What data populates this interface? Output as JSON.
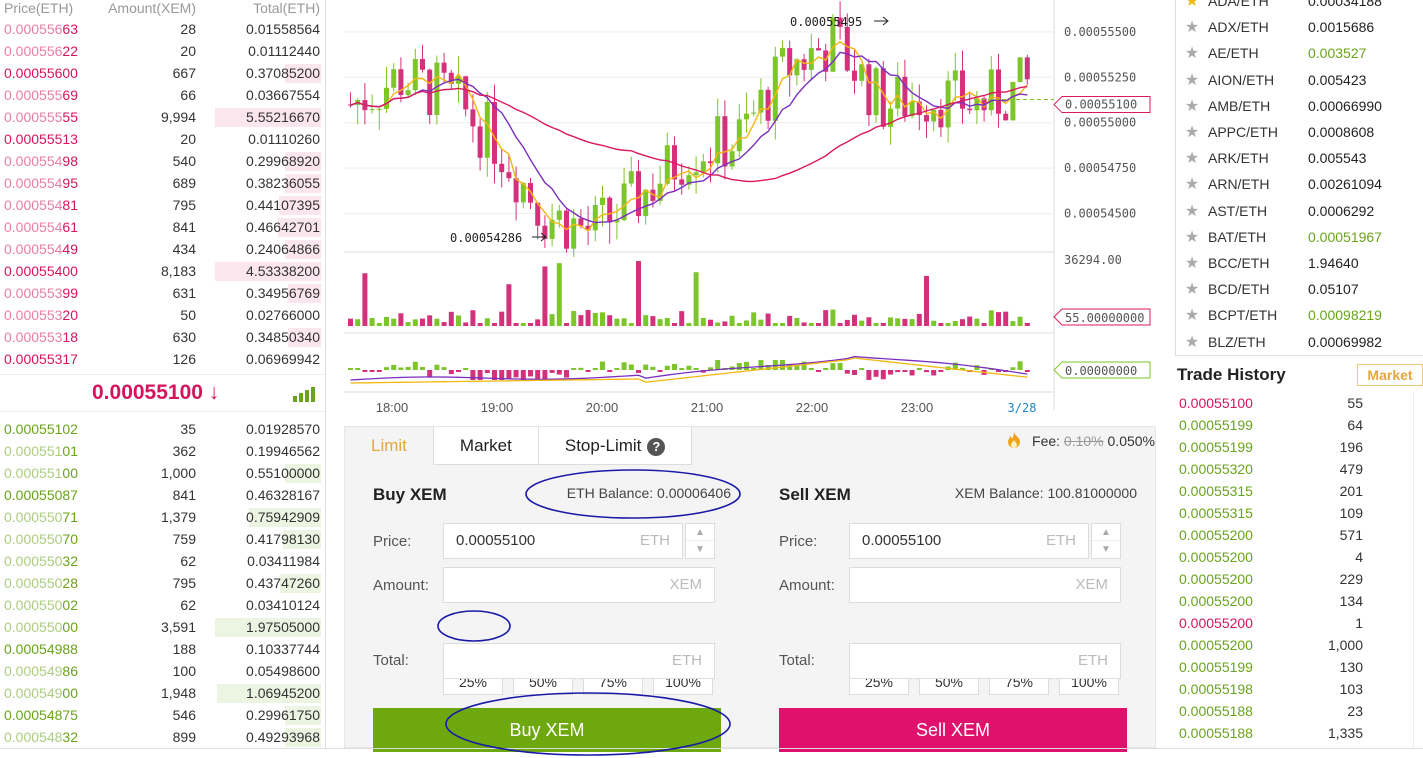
{
  "orderbook": {
    "headers": {
      "price": "Price(ETH)",
      "amount": "Amount(XEM)",
      "total": "Total(ETH)"
    },
    "asks": [
      {
        "hi": "0.000556",
        "lo": "63",
        "amount": "28",
        "total": "0.01558564",
        "depth": 0
      },
      {
        "hi": "0.000556",
        "lo": "22",
        "amount": "20",
        "total": "0.01112440",
        "depth": 0
      },
      {
        "hi": "0.00055600",
        "lo": "",
        "amount": "667",
        "total": "0.37085200",
        "depth": 0.34
      },
      {
        "hi": "0.000555",
        "lo": "69",
        "amount": "66",
        "total": "0.03667554",
        "depth": 0
      },
      {
        "hi": "0.000555",
        "lo": "55",
        "amount": "9,994",
        "total": "5.55216670",
        "depth": 1
      },
      {
        "hi": "0.00055513",
        "lo": "",
        "amount": "20",
        "total": "0.01110260",
        "depth": 0
      },
      {
        "hi": "0.000554",
        "lo": "98",
        "amount": "540",
        "total": "0.29968920",
        "depth": 0.34
      },
      {
        "hi": "0.000554",
        "lo": "95",
        "amount": "689",
        "total": "0.38236055",
        "depth": 0.34
      },
      {
        "hi": "0.000554",
        "lo": "81",
        "amount": "795",
        "total": "0.44107395",
        "depth": 0.4
      },
      {
        "hi": "0.000554",
        "lo": "61",
        "amount": "841",
        "total": "0.46642701",
        "depth": 0.41
      },
      {
        "hi": "0.000554",
        "lo": "49",
        "amount": "434",
        "total": "0.24064866",
        "depth": 0.34
      },
      {
        "hi": "0.00055400",
        "lo": "",
        "amount": "8,183",
        "total": "4.53338200",
        "depth": 1
      },
      {
        "hi": "0.000553",
        "lo": "99",
        "amount": "631",
        "total": "0.34956769",
        "depth": 0.31
      },
      {
        "hi": "0.000553",
        "lo": "20",
        "amount": "50",
        "total": "0.02766000",
        "depth": 0
      },
      {
        "hi": "0.000553",
        "lo": "18",
        "amount": "630",
        "total": "0.34850340",
        "depth": 0.31
      },
      {
        "hi": "0.00055317",
        "lo": "",
        "amount": "126",
        "total": "0.06969942",
        "depth": 0
      }
    ],
    "last_price": "0.00055100 ↓",
    "bids": [
      {
        "hi": "0.00055102",
        "lo": "",
        "amount": "35",
        "total": "0.01928570",
        "depth": 0
      },
      {
        "hi": "0.000551",
        "lo": "01",
        "amount": "362",
        "total": "0.19946562",
        "depth": 0
      },
      {
        "hi": "0.000551",
        "lo": "00",
        "amount": "1,000",
        "total": "0.55100000",
        "depth": 0.34
      },
      {
        "hi": "0.00055087",
        "lo": "",
        "amount": "841",
        "total": "0.46328167",
        "depth": 0
      },
      {
        "hi": "0.000550",
        "lo": "71",
        "amount": "1,379",
        "total": "0.75942909",
        "depth": 0.68
      },
      {
        "hi": "0.000550",
        "lo": "70",
        "amount": "759",
        "total": "0.41798130",
        "depth": 0.36
      },
      {
        "hi": "0.000550",
        "lo": "32",
        "amount": "62",
        "total": "0.03411984",
        "depth": 0
      },
      {
        "hi": "0.000550",
        "lo": "28",
        "amount": "795",
        "total": "0.43747260",
        "depth": 0.39
      },
      {
        "hi": "0.000550",
        "lo": "02",
        "amount": "62",
        "total": "0.03410124",
        "depth": 0
      },
      {
        "hi": "0.000550",
        "lo": "00",
        "amount": "3,591",
        "total": "1.97505000",
        "depth": 1
      },
      {
        "hi": "0.00054988",
        "lo": "",
        "amount": "188",
        "total": "0.10337744",
        "depth": 0
      },
      {
        "hi": "0.000549",
        "lo": "86",
        "amount": "100",
        "total": "0.05498600",
        "depth": 0
      },
      {
        "hi": "0.000549",
        "lo": "00",
        "amount": "1,948",
        "total": "1.06945200",
        "depth": 0.98
      },
      {
        "hi": "0.00054875",
        "lo": "",
        "amount": "546",
        "total": "0.29961750",
        "depth": 0.34
      },
      {
        "hi": "0.000548",
        "lo": "32",
        "amount": "899",
        "total": "0.49293968",
        "depth": 0.34
      }
    ]
  },
  "chart": {
    "x_ticks": [
      "18:00",
      "19:00",
      "20:00",
      "21:00",
      "22:00",
      "23:00"
    ],
    "date_tick": "3/28",
    "y_ticks": [
      "0.00055500",
      "0.00055250",
      "0.00055000",
      "0.00054750",
      "0.00054500"
    ],
    "high_label": "0.00055495",
    "low_label": "0.00054286",
    "current_price_tag": "0.00055100",
    "volume_max": "36294.00",
    "volume_tag": "55.00000000",
    "macd_tag": "0.00000000",
    "colors": {
      "up": "#7dc52a",
      "down": "#d4317c",
      "ma_short": "#f3b712",
      "ma_long": "#7b2fc1",
      "ma_mid": "#d81b60"
    }
  },
  "trade_form": {
    "tabs": [
      "Limit",
      "Market",
      "Stop-Limit"
    ],
    "help_icon": "?",
    "fee_label": "Fee:",
    "fee_old": "0.10%",
    "fee_new": "0.050%",
    "buy": {
      "title": "Buy XEM",
      "balance": "ETH Balance: 0.00006406",
      "price_label": "Price:",
      "price_value": "0.00055100",
      "price_unit": "ETH",
      "amount_label": "Amount:",
      "amount_unit": "XEM",
      "total_label": "Total:",
      "total_unit": "ETH",
      "percents": [
        "25%",
        "50%",
        "75%",
        "100%"
      ],
      "button": "Buy XEM"
    },
    "sell": {
      "title": "Sell XEM",
      "balance": "XEM Balance: 100.81000000",
      "price_label": "Price:",
      "price_value": "0.00055100",
      "price_unit": "ETH",
      "amount_label": "Amount:",
      "amount_unit": "XEM",
      "total_label": "Total:",
      "total_unit": "ETH",
      "percents": [
        "25%",
        "50%",
        "75%",
        "100%"
      ],
      "button": "Sell XEM"
    }
  },
  "markets": [
    {
      "pair": "ADA/ETH",
      "price": "0.00034188",
      "up": false,
      "fav": true
    },
    {
      "pair": "ADX/ETH",
      "price": "0.0015686",
      "up": false,
      "fav": false
    },
    {
      "pair": "AE/ETH",
      "price": "0.003527",
      "up": true,
      "fav": false
    },
    {
      "pair": "AION/ETH",
      "price": "0.005423",
      "up": false,
      "fav": false
    },
    {
      "pair": "AMB/ETH",
      "price": "0.00066990",
      "up": false,
      "fav": false
    },
    {
      "pair": "APPC/ETH",
      "price": "0.0008608",
      "up": false,
      "fav": false
    },
    {
      "pair": "ARK/ETH",
      "price": "0.005543",
      "up": false,
      "fav": false
    },
    {
      "pair": "ARN/ETH",
      "price": "0.00261094",
      "up": false,
      "fav": false
    },
    {
      "pair": "AST/ETH",
      "price": "0.0006292",
      "up": false,
      "fav": false
    },
    {
      "pair": "BAT/ETH",
      "price": "0.00051967",
      "up": true,
      "fav": false
    },
    {
      "pair": "BCC/ETH",
      "price": "1.94640",
      "up": false,
      "fav": false
    },
    {
      "pair": "BCD/ETH",
      "price": "0.05107",
      "up": false,
      "fav": false
    },
    {
      "pair": "BCPT/ETH",
      "price": "0.00098219",
      "up": true,
      "fav": false
    },
    {
      "pair": "BLZ/ETH",
      "price": "0.00069982",
      "up": false,
      "fav": false
    }
  ],
  "trade_history": {
    "title": "Trade History",
    "market_button": "Market",
    "rows": [
      {
        "price": "0.00055100",
        "amount": "55",
        "up": false
      },
      {
        "price": "0.00055199",
        "amount": "64",
        "up": true
      },
      {
        "price": "0.00055199",
        "amount": "196",
        "up": true
      },
      {
        "price": "0.00055320",
        "amount": "479",
        "up": true
      },
      {
        "price": "0.00055315",
        "amount": "201",
        "up": true
      },
      {
        "price": "0.00055315",
        "amount": "109",
        "up": true
      },
      {
        "price": "0.00055200",
        "amount": "571",
        "up": true
      },
      {
        "price": "0.00055200",
        "amount": "4",
        "up": true
      },
      {
        "price": "0.00055200",
        "amount": "229",
        "up": true
      },
      {
        "price": "0.00055200",
        "amount": "134",
        "up": true
      },
      {
        "price": "0.00055200",
        "amount": "1",
        "up": false
      },
      {
        "price": "0.00055200",
        "amount": "1,000",
        "up": true
      },
      {
        "price": "0.00055199",
        "amount": "130",
        "up": true
      },
      {
        "price": "0.00055198",
        "amount": "103",
        "up": true
      },
      {
        "price": "0.00055188",
        "amount": "23",
        "up": true
      },
      {
        "price": "0.00055188",
        "amount": "1,335",
        "up": true
      }
    ]
  },
  "annotation_color": "#1a1aa8"
}
